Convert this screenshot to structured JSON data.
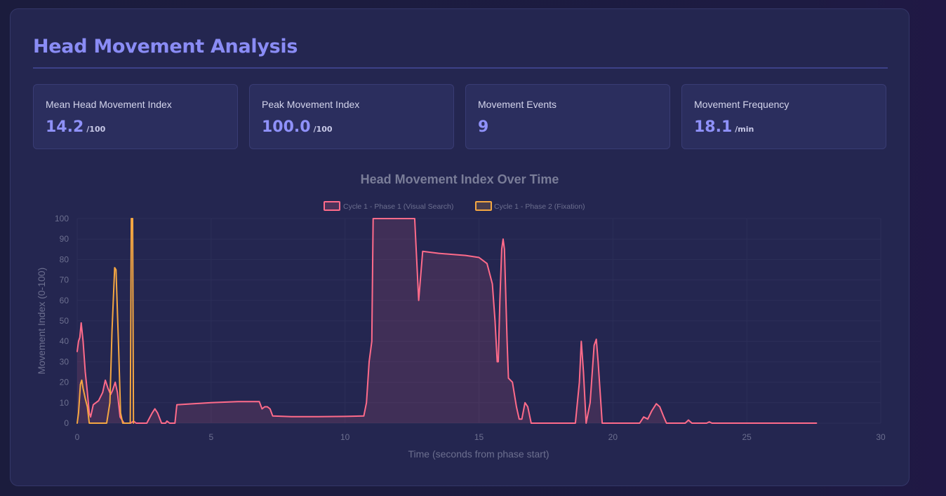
{
  "header": {
    "title": "Head Movement Analysis"
  },
  "stats": [
    {
      "label": "Mean Head Movement Index",
      "value": "14.2",
      "unit": "/100"
    },
    {
      "label": "Peak Movement Index",
      "value": "100.0",
      "unit": "/100"
    },
    {
      "label": "Movement Events",
      "value": "9",
      "unit": ""
    },
    {
      "label": "Movement Frequency",
      "value": "18.1",
      "unit": "/min"
    }
  ],
  "colors": {
    "accent": "#8a8cf5",
    "series_phase1": "#ff6b8a",
    "series_phase2": "#f5a742"
  },
  "chart_data": {
    "type": "line",
    "title": "Head Movement Index Over Time",
    "xlabel": "Time (seconds from phase start)",
    "ylabel": "Movement Index (0-100)",
    "xlim": [
      0,
      30
    ],
    "ylim": [
      0,
      100
    ],
    "xticks": [
      0,
      5,
      10,
      15,
      20,
      25,
      30
    ],
    "yticks": [
      0,
      10,
      20,
      30,
      40,
      50,
      60,
      70,
      80,
      90,
      100
    ],
    "grid": true,
    "legend_position": "top",
    "series": [
      {
        "name": "Cycle 1 - Phase 1 (Visual Search)",
        "color": "#ff6b8a",
        "fill": true,
        "points": [
          [
            0,
            35
          ],
          [
            0.05,
            40
          ],
          [
            0.1,
            42
          ],
          [
            0.15,
            49
          ],
          [
            0.22,
            40
          ],
          [
            0.3,
            25
          ],
          [
            0.38,
            15
          ],
          [
            0.45,
            5
          ],
          [
            0.5,
            3
          ],
          [
            0.6,
            9
          ],
          [
            0.8,
            11
          ],
          [
            0.95,
            15
          ],
          [
            1.05,
            21
          ],
          [
            1.15,
            17
          ],
          [
            1.25,
            14
          ],
          [
            1.32,
            16
          ],
          [
            1.42,
            20
          ],
          [
            1.5,
            15
          ],
          [
            1.6,
            3
          ],
          [
            1.75,
            0
          ],
          [
            2.0,
            0
          ],
          [
            2.1,
            1
          ],
          [
            2.2,
            0
          ],
          [
            2.6,
            0
          ],
          [
            2.8,
            5
          ],
          [
            2.9,
            7
          ],
          [
            3.0,
            5
          ],
          [
            3.15,
            0
          ],
          [
            3.3,
            0
          ],
          [
            3.35,
            1
          ],
          [
            3.45,
            0
          ],
          [
            3.65,
            0
          ],
          [
            3.72,
            9
          ],
          [
            5.0,
            10
          ],
          [
            6.0,
            10.5
          ],
          [
            6.8,
            10.5
          ],
          [
            6.9,
            7
          ],
          [
            7.0,
            8
          ],
          [
            7.1,
            8
          ],
          [
            7.2,
            7
          ],
          [
            7.3,
            3.5
          ],
          [
            8.0,
            3.2
          ],
          [
            9.0,
            3.2
          ],
          [
            10.0,
            3.3
          ],
          [
            10.7,
            3.5
          ],
          [
            10.8,
            10
          ],
          [
            10.9,
            30
          ],
          [
            11.0,
            40
          ],
          [
            11.05,
            100
          ],
          [
            12.6,
            100
          ],
          [
            12.75,
            60
          ],
          [
            12.9,
            84
          ],
          [
            13.5,
            83
          ],
          [
            14.0,
            82.5
          ],
          [
            14.5,
            82
          ],
          [
            15.0,
            81
          ],
          [
            15.3,
            78
          ],
          [
            15.5,
            68
          ],
          [
            15.6,
            50
          ],
          [
            15.68,
            30
          ],
          [
            15.72,
            30
          ],
          [
            15.78,
            60
          ],
          [
            15.85,
            85
          ],
          [
            15.9,
            90
          ],
          [
            15.95,
            85
          ],
          [
            16.05,
            40
          ],
          [
            16.1,
            22
          ],
          [
            16.25,
            20
          ],
          [
            16.4,
            8
          ],
          [
            16.5,
            2
          ],
          [
            16.6,
            2
          ],
          [
            16.72,
            10
          ],
          [
            16.82,
            8
          ],
          [
            16.95,
            0
          ],
          [
            17.1,
            0
          ],
          [
            18.6,
            0
          ],
          [
            18.75,
            20
          ],
          [
            18.82,
            40
          ],
          [
            18.9,
            25
          ],
          [
            19.0,
            0
          ],
          [
            19.15,
            10
          ],
          [
            19.3,
            38
          ],
          [
            19.38,
            41
          ],
          [
            19.45,
            30
          ],
          [
            19.6,
            0
          ],
          [
            21.0,
            0
          ],
          [
            21.15,
            3
          ],
          [
            21.3,
            2
          ],
          [
            21.45,
            6
          ],
          [
            21.62,
            9.5
          ],
          [
            21.75,
            8
          ],
          [
            21.9,
            3
          ],
          [
            22.0,
            0
          ],
          [
            22.7,
            0
          ],
          [
            22.82,
            1.5
          ],
          [
            22.95,
            0
          ],
          [
            23.5,
            0
          ],
          [
            23.6,
            0.6
          ],
          [
            23.7,
            0
          ],
          [
            24.0,
            0
          ],
          [
            26.0,
            0
          ],
          [
            27.6,
            0
          ]
        ]
      },
      {
        "name": "Cycle 1 - Phase 2 (Fixation)",
        "color": "#f5a742",
        "fill": false,
        "points": [
          [
            0,
            0
          ],
          [
            0.05,
            5
          ],
          [
            0.12,
            19
          ],
          [
            0.17,
            21
          ],
          [
            0.22,
            17
          ],
          [
            0.3,
            12
          ],
          [
            0.38,
            8
          ],
          [
            0.45,
            0
          ],
          [
            1.1,
            0
          ],
          [
            1.22,
            10
          ],
          [
            1.3,
            45
          ],
          [
            1.4,
            76
          ],
          [
            1.45,
            75
          ],
          [
            1.55,
            35
          ],
          [
            1.62,
            5
          ],
          [
            1.7,
            0
          ],
          [
            1.98,
            0
          ],
          [
            2.02,
            100
          ],
          [
            2.07,
            100
          ],
          [
            2.1,
            0
          ]
        ]
      }
    ]
  }
}
